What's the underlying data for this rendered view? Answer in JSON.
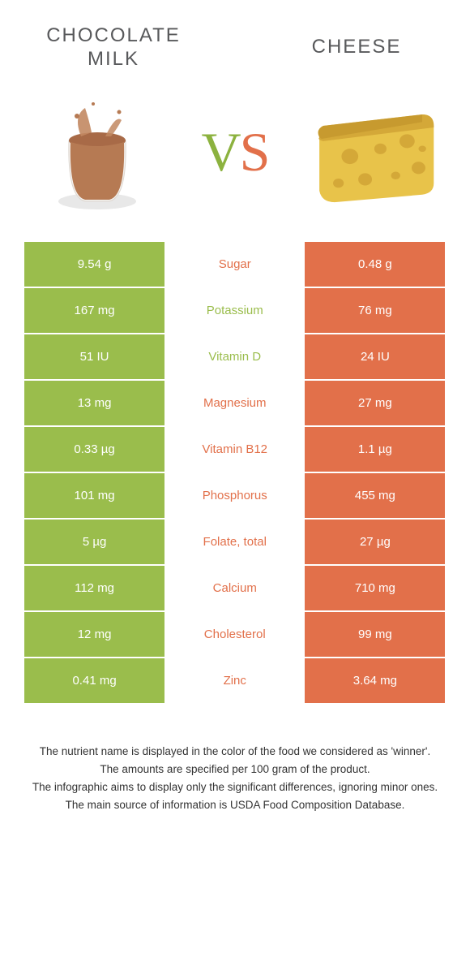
{
  "colors": {
    "green": "#9abd4c",
    "orange": "#e2704a",
    "white": "#ffffff",
    "title": "#58595b"
  },
  "header": {
    "left_title": "CHOCOLATE\nMILK",
    "right_title": "CHEESE",
    "vs_v": "V",
    "vs_s": "S"
  },
  "table": {
    "rows": [
      {
        "left": "9.54 g",
        "label": "Sugar",
        "right": "0.48 g",
        "left_color": "#9abd4c",
        "label_color": "#e2704a",
        "right_color": "#e2704a"
      },
      {
        "left": "167 mg",
        "label": "Potassium",
        "right": "76 mg",
        "left_color": "#9abd4c",
        "label_color": "#9abd4c",
        "right_color": "#e2704a"
      },
      {
        "left": "51 IU",
        "label": "Vitamin D",
        "right": "24 IU",
        "left_color": "#9abd4c",
        "label_color": "#9abd4c",
        "right_color": "#e2704a"
      },
      {
        "left": "13 mg",
        "label": "Magnesium",
        "right": "27 mg",
        "left_color": "#9abd4c",
        "label_color": "#e2704a",
        "right_color": "#e2704a"
      },
      {
        "left": "0.33 µg",
        "label": "Vitamin B12",
        "right": "1.1 µg",
        "left_color": "#9abd4c",
        "label_color": "#e2704a",
        "right_color": "#e2704a"
      },
      {
        "left": "101 mg",
        "label": "Phosphorus",
        "right": "455 mg",
        "left_color": "#9abd4c",
        "label_color": "#e2704a",
        "right_color": "#e2704a"
      },
      {
        "left": "5 µg",
        "label": "Folate, total",
        "right": "27 µg",
        "left_color": "#9abd4c",
        "label_color": "#e2704a",
        "right_color": "#e2704a"
      },
      {
        "left": "112 mg",
        "label": "Calcium",
        "right": "710 mg",
        "left_color": "#9abd4c",
        "label_color": "#e2704a",
        "right_color": "#e2704a"
      },
      {
        "left": "12 mg",
        "label": "Cholesterol",
        "right": "99 mg",
        "left_color": "#9abd4c",
        "label_color": "#e2704a",
        "right_color": "#e2704a"
      },
      {
        "left": "0.41 mg",
        "label": "Zinc",
        "right": "3.64 mg",
        "left_color": "#9abd4c",
        "label_color": "#e2704a",
        "right_color": "#e2704a"
      }
    ]
  },
  "footnotes": [
    "The nutrient name is displayed in the color of the food we considered as 'winner'.",
    "The amounts are specified per 100 gram of the product.",
    "The infographic aims to display only the significant differences, ignoring minor ones.",
    "The main source of information is USDA Food Composition Database."
  ]
}
